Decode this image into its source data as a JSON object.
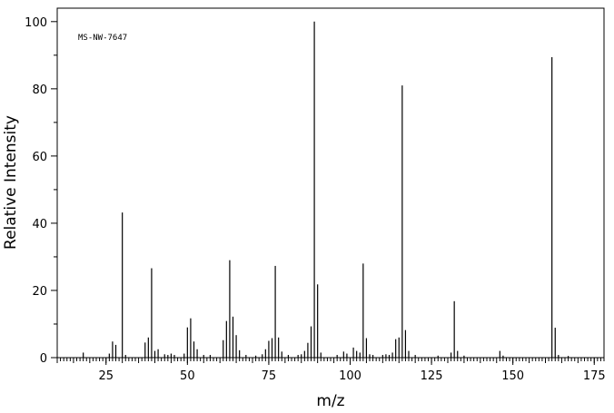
{
  "chart_data": {
    "type": "bar",
    "style": "mass-spectrum-sticks",
    "annotation": "MS-NW-7647",
    "xlabel": "m/z",
    "ylabel": "Relative Intensity",
    "xlim": [
      10,
      178
    ],
    "ylim": [
      0,
      104
    ],
    "x_ticks": [
      25,
      50,
      75,
      100,
      125,
      150,
      175
    ],
    "y_ticks": [
      0,
      20,
      40,
      60,
      80,
      100
    ],
    "grid": false,
    "peaks": [
      [
        18,
        1.5
      ],
      [
        26,
        1.2
      ],
      [
        27,
        4.8
      ],
      [
        28,
        3.8
      ],
      [
        30,
        43.2
      ],
      [
        31,
        0.8
      ],
      [
        37,
        4.5
      ],
      [
        38,
        6.0
      ],
      [
        39,
        26.6
      ],
      [
        40,
        2.0
      ],
      [
        41,
        2.5
      ],
      [
        43,
        1.0
      ],
      [
        44,
        0.8
      ],
      [
        45,
        1.2
      ],
      [
        46,
        0.8
      ],
      [
        49,
        1.2
      ],
      [
        50,
        9.0
      ],
      [
        51,
        11.7
      ],
      [
        52,
        4.8
      ],
      [
        53,
        2.5
      ],
      [
        55,
        0.8
      ],
      [
        57,
        0.8
      ],
      [
        61,
        5.2
      ],
      [
        62,
        10.9
      ],
      [
        63,
        29.0
      ],
      [
        64,
        12.2
      ],
      [
        65,
        6.7
      ],
      [
        66,
        2.2
      ],
      [
        68,
        0.8
      ],
      [
        71,
        0.6
      ],
      [
        73,
        1.0
      ],
      [
        74,
        2.5
      ],
      [
        75,
        5.0
      ],
      [
        76,
        5.8
      ],
      [
        77,
        27.3
      ],
      [
        78,
        6.0
      ],
      [
        79,
        1.8
      ],
      [
        81,
        0.8
      ],
      [
        84,
        0.8
      ],
      [
        85,
        1.0
      ],
      [
        86,
        2.0
      ],
      [
        87,
        4.4
      ],
      [
        88,
        9.3
      ],
      [
        89,
        100.0
      ],
      [
        90,
        21.8
      ],
      [
        91,
        1.5
      ],
      [
        96,
        0.8
      ],
      [
        98,
        1.8
      ],
      [
        99,
        1.2
      ],
      [
        101,
        3.0
      ],
      [
        102,
        2.0
      ],
      [
        103,
        1.5
      ],
      [
        104,
        28.0
      ],
      [
        105,
        5.8
      ],
      [
        106,
        1.0
      ],
      [
        107,
        0.8
      ],
      [
        110,
        0.8
      ],
      [
        111,
        1.0
      ],
      [
        112,
        0.8
      ],
      [
        113,
        1.5
      ],
      [
        114,
        5.5
      ],
      [
        115,
        6.0
      ],
      [
        116,
        81.0
      ],
      [
        117,
        8.2
      ],
      [
        118,
        2.0
      ],
      [
        120,
        0.8
      ],
      [
        127,
        0.6
      ],
      [
        131,
        1.5
      ],
      [
        132,
        16.8
      ],
      [
        133,
        2.0
      ],
      [
        135,
        0.6
      ],
      [
        146,
        2.0
      ],
      [
        147,
        0.6
      ],
      [
        162,
        89.4
      ],
      [
        163,
        8.9
      ],
      [
        164,
        0.8
      ],
      [
        167,
        0.5
      ]
    ]
  }
}
